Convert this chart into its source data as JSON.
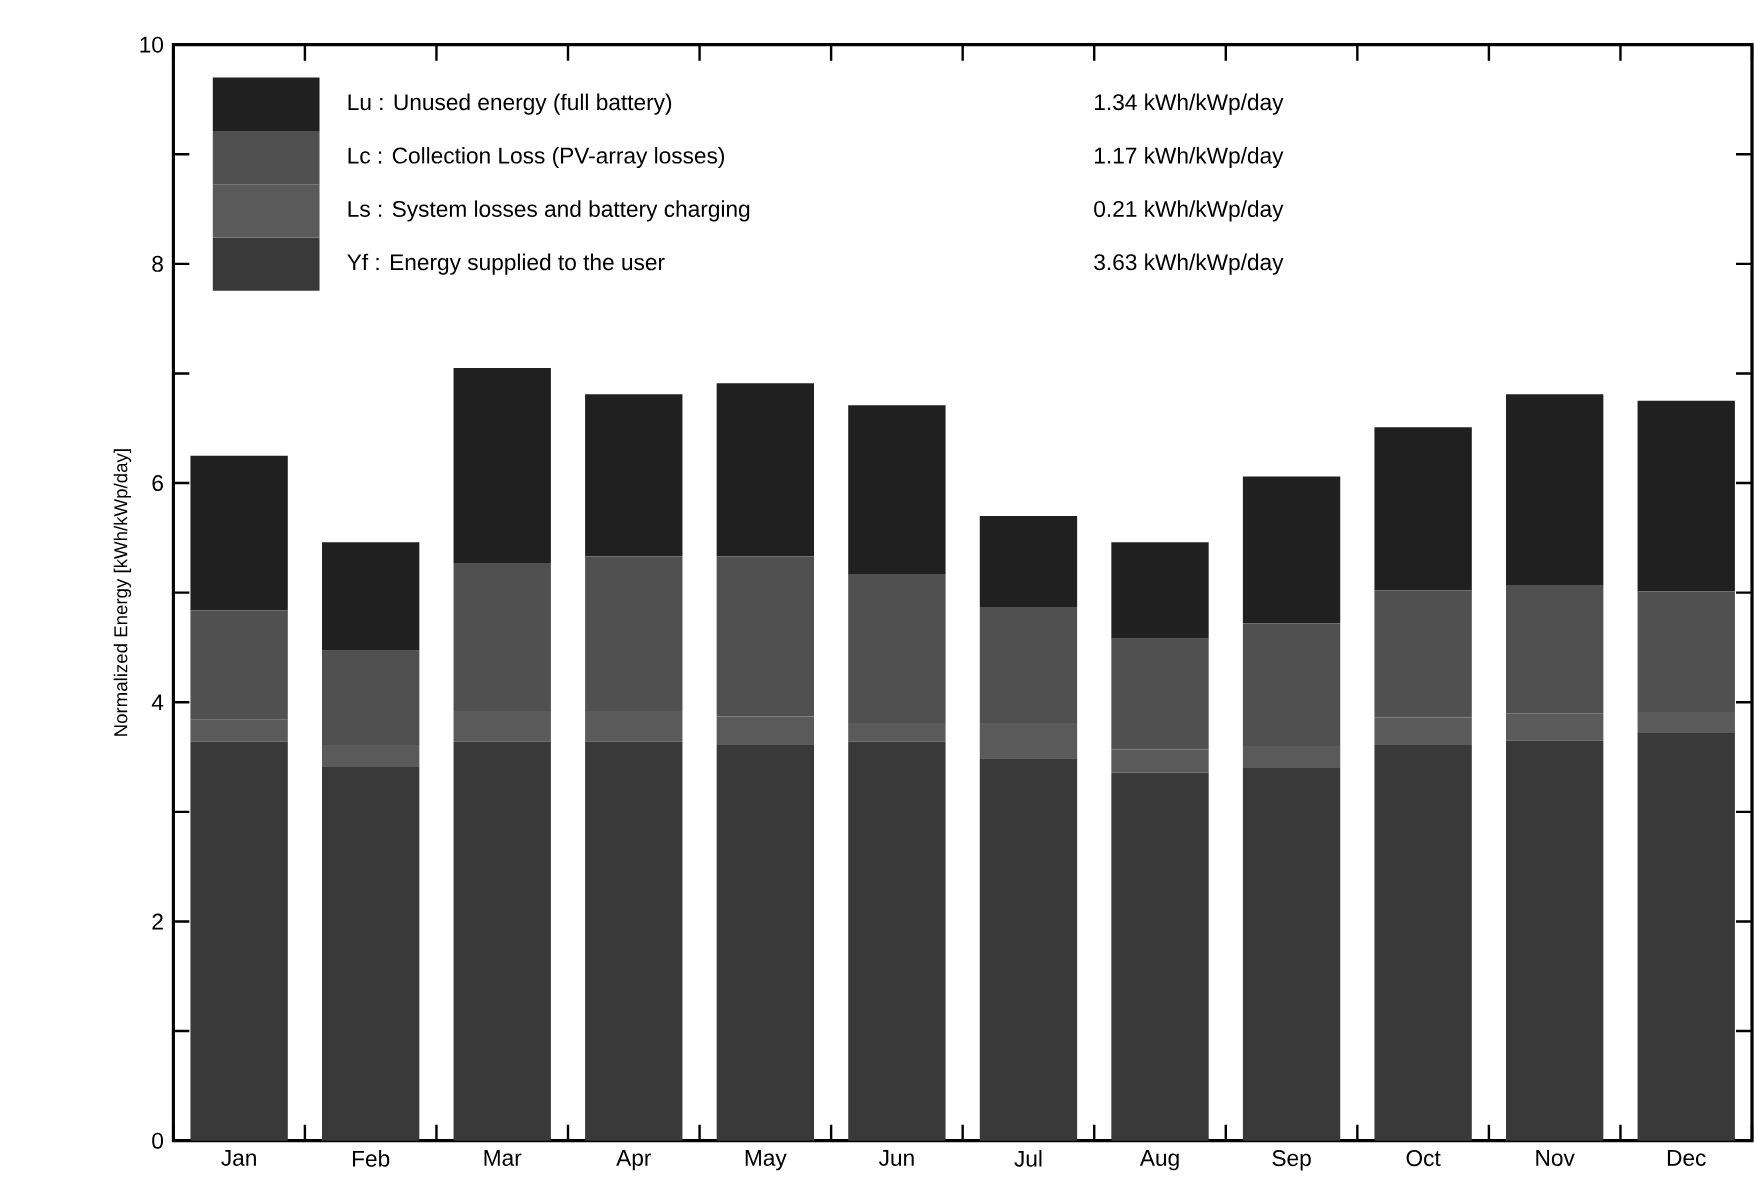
{
  "chart_data": {
    "type": "bar",
    "stacked": true,
    "ylabel": "Normalized Energy [kWh/kWp/day]",
    "categories": [
      "Jan",
      "Feb",
      "Mar",
      "Apr",
      "May",
      "Jun",
      "Jul",
      "Aug",
      "Sep",
      "Oct",
      "Nov",
      "Dec"
    ],
    "series": [
      {
        "name": "Yf : Energy supplied to the user",
        "color": "#393939",
        "values": [
          3.64,
          3.41,
          3.64,
          3.64,
          3.61,
          3.64,
          3.49,
          3.36,
          3.4,
          3.61,
          3.65,
          3.72
        ]
      },
      {
        "name": "Ls : System losses and battery charging",
        "color": "#5a5a5a",
        "values": [
          0.2,
          0.2,
          0.28,
          0.28,
          0.26,
          0.17,
          0.32,
          0.21,
          0.2,
          0.25,
          0.25,
          0.19
        ]
      },
      {
        "name": "Lc : Collection Loss (PV-array losses)",
        "color": "#505050",
        "values": [
          1.0,
          0.86,
          1.35,
          1.41,
          1.46,
          1.36,
          1.06,
          1.01,
          1.12,
          1.16,
          1.17,
          1.1
        ]
      },
      {
        "name": "Lu : Unused energy (full battery)",
        "color": "#202020",
        "values": [
          1.41,
          0.99,
          1.78,
          1.48,
          1.58,
          1.54,
          0.83,
          0.88,
          1.34,
          1.49,
          1.74,
          1.74
        ]
      }
    ],
    "annotations": [
      "3.63 kWh/kWp/day",
      "0.21 kWh/kWp/day",
      "1.17 kWh/kWp/day",
      "1.34 kWh/kWp/day"
    ],
    "ylim": [
      0,
      10
    ],
    "yticks": [
      0,
      {
        "value": 1,
        "label": null
      },
      2,
      {
        "value": 3,
        "label": null
      },
      4,
      {
        "value": 5,
        "label": null
      },
      6,
      {
        "value": 7,
        "label": null
      },
      8,
      {
        "value": 9,
        "label": null
      },
      10
    ],
    "legend": "top left"
  }
}
